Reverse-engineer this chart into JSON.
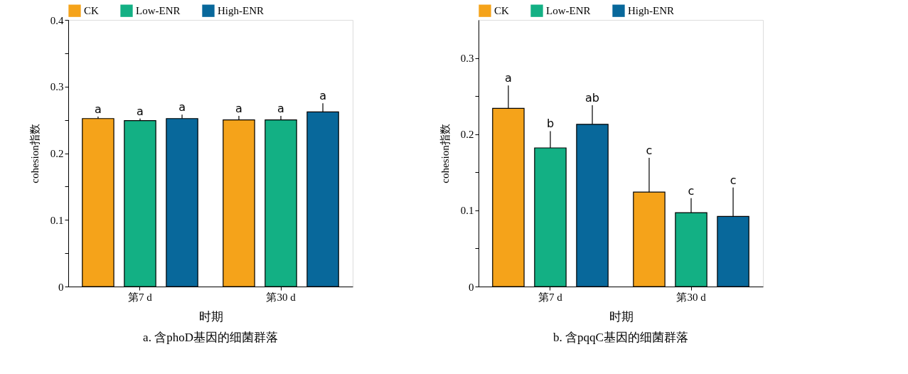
{
  "chart_data": [
    {
      "type": "bar",
      "title": "a. 含phoD基因的细菌群落",
      "xlabel": "时期",
      "ylabel": "cohesion指数",
      "categories": [
        "第7 d",
        "第30 d"
      ],
      "series": [
        {
          "name": "CK",
          "color": "#f5a31a",
          "values": [
            0.252,
            0.25
          ],
          "errors": [
            0.003,
            0.006
          ],
          "value_labels": [
            "a",
            "a"
          ]
        },
        {
          "name": "Low-ENR",
          "color": "#13b084",
          "values": [
            0.249,
            0.25
          ],
          "errors": [
            0.003,
            0.006
          ],
          "value_labels": [
            "a",
            "a"
          ]
        },
        {
          "name": "High-ENR",
          "color": "#08689b",
          "values": [
            0.252,
            0.262
          ],
          "errors": [
            0.006,
            0.013
          ],
          "value_labels": [
            "a",
            "a"
          ]
        }
      ],
      "ylim": [
        0,
        0.4
      ],
      "yticks": [
        0,
        {
          "value": 0.05,
          "label": null
        },
        0.1,
        {
          "value": 0.15,
          "label": null
        },
        0.2,
        {
          "value": 0.25,
          "label": null
        },
        0.3,
        {
          "value": 0.35,
          "label": null
        },
        0.4
      ],
      "legend": "top",
      "grid": false
    },
    {
      "type": "bar",
      "title": "b. 含pqqC基因的细菌群落",
      "xlabel": "时期",
      "ylabel": "cohesion指数",
      "categories": [
        "第7 d",
        "第30 d"
      ],
      "series": [
        {
          "name": "CK",
          "color": "#f5a31a",
          "values": [
            0.234,
            0.124
          ],
          "errors": [
            0.03,
            0.045
          ],
          "value_labels": [
            "a",
            "c"
          ]
        },
        {
          "name": "Low-ENR",
          "color": "#13b084",
          "values": [
            0.182,
            0.097
          ],
          "errors": [
            0.022,
            0.019
          ],
          "value_labels": [
            "b",
            "c"
          ]
        },
        {
          "name": "High-ENR",
          "color": "#08689b",
          "values": [
            0.213,
            0.092
          ],
          "errors": [
            0.025,
            0.038
          ],
          "value_labels": [
            "ab",
            "c"
          ]
        }
      ],
      "ylim": [
        0,
        0.35
      ],
      "yticks": [
        0,
        {
          "value": 0.05,
          "label": null
        },
        0.1,
        {
          "value": 0.15,
          "label": null
        },
        0.2,
        {
          "value": 0.25,
          "label": null
        },
        0.3
      ],
      "legend": "top",
      "grid": false
    }
  ]
}
